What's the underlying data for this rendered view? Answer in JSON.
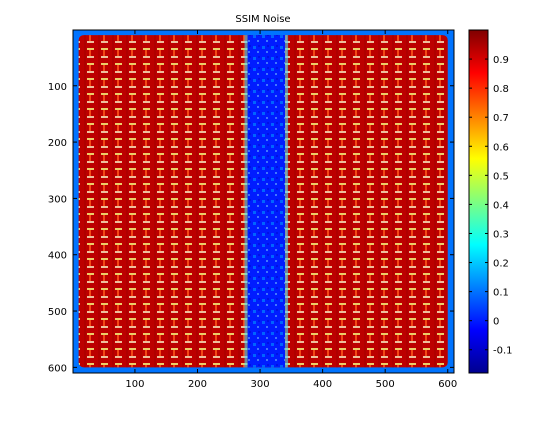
{
  "chart_data": {
    "type": "heatmap",
    "title": "SSIM Noise",
    "xlabel": "",
    "ylabel": "",
    "xlim": [
      1,
      610
    ],
    "ylim": [
      1,
      610
    ],
    "y_reversed": true,
    "x_ticks": [
      100,
      200,
      300,
      400,
      500,
      600
    ],
    "y_ticks": [
      100,
      200,
      300,
      400,
      500,
      600
    ],
    "colormap": "jet",
    "colorbar": {
      "clim": [
        -0.18,
        1.0
      ],
      "ticks": [
        -0.1,
        0,
        0.1,
        0.2,
        0.3,
        0.4,
        0.5,
        0.6,
        0.7,
        0.8,
        0.9
      ],
      "tick_labels": [
        "-0.1",
        "0",
        "0.1",
        "0.2",
        "0.3",
        "0.4",
        "0.5",
        "0.6",
        "0.7",
        "0.8",
        "0.9"
      ]
    },
    "regions": [
      {
        "name": "background",
        "x": [
          10,
          600
        ],
        "y": [
          10,
          600
        ],
        "value": 0.93
      },
      {
        "name": "low-similarity band",
        "x": [
          280,
          340
        ],
        "y": [
          10,
          600
        ],
        "value": 0.0
      },
      {
        "name": "outer border",
        "x": [
          1,
          610
        ],
        "y": [
          1,
          610
        ],
        "value": 0.1
      }
    ],
    "grid": false,
    "legend": "none"
  }
}
